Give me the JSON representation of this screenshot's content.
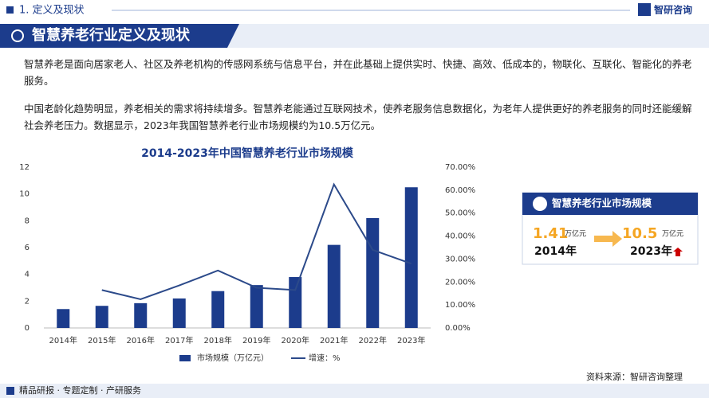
{
  "header": {
    "section": "1. 定义及现状",
    "logo": "智研咨询",
    "banner": "智慧养老行业定义及现状"
  },
  "paragraphs": [
    "智慧养老是面向居家老人、社区及养老机构的传感网系统与信息平台，并在此基础上提供实时、快捷、高效、低成本的，物联化、互联化、智能化的养老服务。",
    "中国老龄化趋势明显，养老相关的需求将持续增多。智慧养老能通过互联网技术，使养老服务信息数据化，为老年人提供更好的养老服务的同时还能缓解社会养老压力。数据显示，2023年我国智慧养老行业市场规模约为10.5万亿元。"
  ],
  "chart_data": {
    "type": "bar-line",
    "title": "2014-2023年中国智慧养老行业市场规模",
    "categories": [
      "2014年",
      "2015年",
      "2016年",
      "2017年",
      "2018年",
      "2019年",
      "2020年",
      "2021年",
      "2022年",
      "2023年"
    ],
    "series": [
      {
        "name": "市场规模（万亿元）",
        "type": "bar",
        "color": "#1c3c8c",
        "values": [
          1.41,
          1.65,
          1.85,
          2.2,
          2.75,
          3.2,
          3.8,
          6.2,
          8.2,
          10.5
        ]
      },
      {
        "name": "增速：%",
        "type": "line",
        "axis": "y2",
        "color": "#2c4a8a",
        "values": [
          null,
          16.5,
          12.5,
          18.5,
          25,
          17.5,
          16.5,
          62.5,
          34,
          28
        ]
      }
    ],
    "ylim": [
      0,
      12
    ],
    "yticks": [
      0,
      2,
      4,
      6,
      8,
      10,
      12
    ],
    "y2lim": [
      0,
      70
    ],
    "y2ticks": [
      {
        "value": 0,
        "label": "0.00%"
      },
      {
        "value": 10,
        "label": "10.00%"
      },
      {
        "value": 20,
        "label": "20.00%"
      },
      {
        "value": 30,
        "label": "30.00%"
      },
      {
        "value": 40,
        "label": "40.00%"
      },
      {
        "value": 50,
        "label": "50.00%"
      },
      {
        "value": 60,
        "label": "60.00%"
      },
      {
        "value": 70,
        "label": "70.00%"
      }
    ]
  },
  "callout": {
    "title": "智慧养老行业市场规模",
    "left_value": "1.41",
    "left_unit": "万亿元",
    "left_year": "2014年",
    "right_value": "10.5",
    "right_unit": "万亿元",
    "right_year": "2023年"
  },
  "footer": {
    "source": "资料来源：智研咨询整理",
    "slogan": "精品研报 · 专题定制 · 产研服务"
  }
}
